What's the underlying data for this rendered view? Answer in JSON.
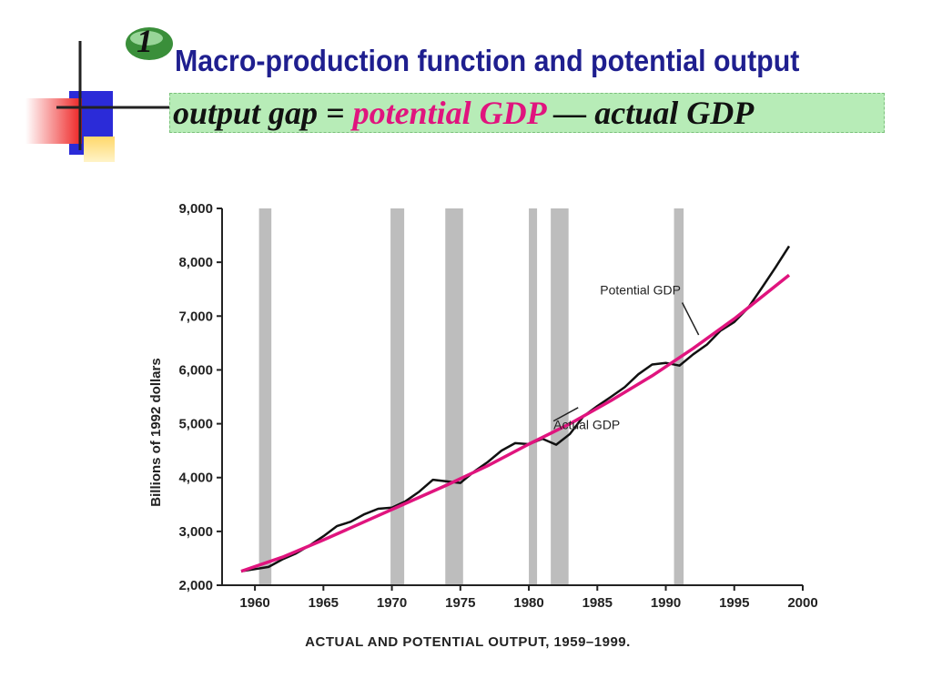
{
  "slide": {
    "badge_number": "1",
    "title": "Macro-production function and potential  output",
    "formula": {
      "left": "output gap = ",
      "highlight": "potential GDP",
      "right": " — actual GDP"
    }
  },
  "chart_data": {
    "type": "line",
    "title": "ACTUAL AND POTENTIAL OUTPUT, 1959–1999.",
    "xlabel": "",
    "ylabel": "Billions of 1992 dollars",
    "xlim": [
      1958,
      2000
    ],
    "ylim": [
      2000,
      9000
    ],
    "xticks": [
      1960,
      1965,
      1970,
      1975,
      1980,
      1985,
      1990,
      1995,
      2000
    ],
    "yticks": [
      2000,
      3000,
      4000,
      5000,
      6000,
      7000,
      8000,
      9000
    ],
    "ytick_labels": [
      "2,000",
      "3,000",
      "4,000",
      "5,000",
      "6,000",
      "7,000",
      "8,000",
      "9,000"
    ],
    "recessions": [
      [
        1960.3,
        1961.2
      ],
      [
        1969.9,
        1970.9
      ],
      [
        1973.9,
        1975.2
      ],
      [
        1980.0,
        1980.6
      ],
      [
        1981.6,
        1982.9
      ],
      [
        1990.6,
        1991.3
      ]
    ],
    "series": [
      {
        "name": "Actual GDP",
        "color": "#111111",
        "x": [
          1959,
          1960,
          1961,
          1962,
          1963,
          1964,
          1965,
          1966,
          1967,
          1968,
          1969,
          1970,
          1971,
          1972,
          1973,
          1974,
          1975,
          1976,
          1977,
          1978,
          1979,
          1980,
          1981,
          1982,
          1983,
          1984,
          1985,
          1986,
          1987,
          1988,
          1989,
          1990,
          1991,
          1992,
          1993,
          1994,
          1995,
          1996,
          1997,
          1998,
          1999
        ],
        "values": [
          2260,
          2300,
          2340,
          2480,
          2590,
          2740,
          2910,
          3100,
          3180,
          3320,
          3420,
          3440,
          3560,
          3740,
          3960,
          3930,
          3900,
          4110,
          4290,
          4500,
          4640,
          4620,
          4720,
          4610,
          4810,
          5140,
          5330,
          5500,
          5680,
          5920,
          6100,
          6130,
          6080,
          6290,
          6470,
          6730,
          6890,
          7150,
          7520,
          7900,
          8300
        ]
      },
      {
        "name": "Potential GDP",
        "color": "#e0147e",
        "x": [
          1959,
          1962,
          1965,
          1968,
          1971,
          1974,
          1977,
          1980,
          1983,
          1986,
          1989,
          1992,
          1995,
          1999
        ],
        "values": [
          2260,
          2520,
          2840,
          3180,
          3520,
          3860,
          4220,
          4620,
          5000,
          5430,
          5890,
          6400,
          6950,
          7760
        ]
      }
    ],
    "annotations": [
      {
        "text": "Potential GDP",
        "series": "Potential GDP"
      },
      {
        "text": "Actual GDP",
        "series": "Actual GDP"
      }
    ]
  }
}
